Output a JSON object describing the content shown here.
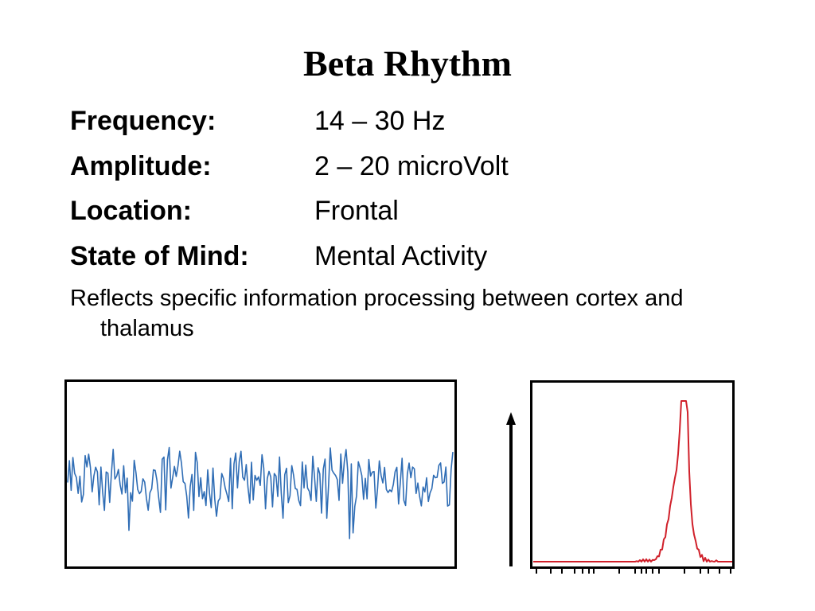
{
  "slide": {
    "title": "Beta Rhythm"
  },
  "properties": [
    {
      "label": "Frequency:",
      "value": "14 – 30 Hz"
    },
    {
      "label": "Amplitude:",
      "value": "2 – 20 microVolt"
    },
    {
      "label": "Location:",
      "value": "Frontal"
    },
    {
      "label": "State of Mind:",
      "value": "Mental Activity"
    }
  ],
  "note": "Reflects specific information processing between cortex and thalamus",
  "figures": {
    "waveform_color": "#2f6db5",
    "spectrum_color": "#d0202a",
    "frame_color": "#000000"
  }
}
